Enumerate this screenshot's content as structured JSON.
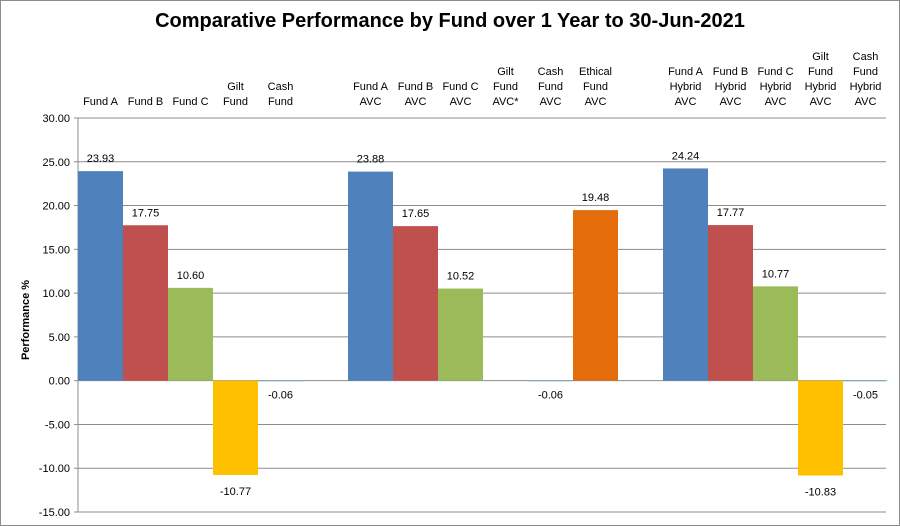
{
  "chart_data": {
    "type": "bar",
    "title": "Comparative Performance by Fund over 1 Year to 30-Jun-2021",
    "xlabel": "",
    "ylabel": "Performance %",
    "ylim": [
      -15,
      30
    ],
    "y_ticks": [
      "30.00",
      "25.00",
      "20.00",
      "15.00",
      "10.00",
      "5.00",
      "0.00",
      "-5.00",
      "-10.00",
      "-15.00"
    ],
    "grid": true,
    "legend": "none",
    "categories": [
      "Fund A",
      "Fund B",
      "Fund C",
      "Gilt Fund",
      "Cash Fund",
      "Fund A AVC",
      "Fund B AVC",
      "Fund C AVC",
      "Gilt Fund AVC*",
      "Cash Fund AVC",
      "Ethical Fund AVC",
      "Fund A Hybrid AVC",
      "Fund B Hybrid AVC",
      "Fund C Hybrid AVC",
      "Gilt Fund Hybrid AVC",
      "Cash Fund Hybrid AVC"
    ],
    "category_lines": [
      [
        "Fund A"
      ],
      [
        "Fund B"
      ],
      [
        "Fund C"
      ],
      [
        "Gilt",
        "Fund"
      ],
      [
        "Cash",
        "Fund"
      ],
      [
        "Fund A",
        "AVC"
      ],
      [
        "Fund B",
        "AVC"
      ],
      [
        "Fund C",
        "AVC"
      ],
      [
        "Gilt",
        "Fund",
        "AVC*"
      ],
      [
        "Cash",
        "Fund",
        "AVC"
      ],
      [
        "Ethical",
        "Fund",
        "AVC"
      ],
      [
        "Fund A",
        "Hybrid",
        "AVC"
      ],
      [
        "Fund B",
        "Hybrid",
        "AVC"
      ],
      [
        "Fund C",
        "Hybrid",
        "AVC"
      ],
      [
        "Gilt",
        "Fund",
        "Hybrid",
        "AVC"
      ],
      [
        "Cash",
        "Fund",
        "Hybrid",
        "AVC"
      ]
    ],
    "values": [
      23.93,
      17.75,
      10.6,
      -10.77,
      -0.06,
      23.88,
      17.65,
      10.52,
      null,
      -0.06,
      19.48,
      24.24,
      17.77,
      10.77,
      -10.83,
      -0.05
    ],
    "value_labels": [
      "23.93",
      "17.75",
      "10.60",
      "-10.77",
      "-0.06",
      "23.88",
      "17.65",
      "10.52",
      "",
      "-0.06",
      "19.48",
      "24.24",
      "17.77",
      "10.77",
      "-10.83",
      "-0.05"
    ],
    "bar_colors": [
      "#4f81bd",
      "#c0504d",
      "#9bbb59",
      "#ffc000",
      "#4bacc6",
      "#4f81bd",
      "#c0504d",
      "#9bbb59",
      "#ffc000",
      "#4bacc6",
      "#e46c0a",
      "#4f81bd",
      "#c0504d",
      "#9bbb59",
      "#ffc000",
      "#4bacc6"
    ]
  }
}
